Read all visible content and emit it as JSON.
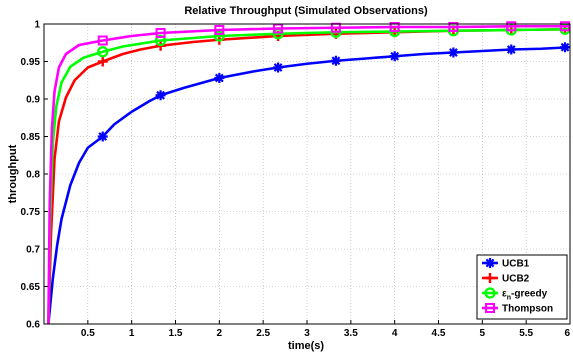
{
  "chart_data": {
    "type": "line",
    "title": "Relative Throughput (Simulated Observations)",
    "xlabel": "time(s)",
    "ylabel": "throughput",
    "xlim": [
      0,
      6
    ],
    "ylim": [
      0.6,
      1.0
    ],
    "xticks": [
      0.5,
      1,
      1.5,
      2,
      2.5,
      3,
      3.5,
      4,
      4.5,
      5,
      5.5,
      6
    ],
    "xtick_labels": [
      "0.5",
      "1",
      "1.5",
      "2",
      "2.5",
      "3",
      "3.5",
      "4",
      "4.5",
      "5",
      "5.5",
      "6"
    ],
    "yticks": [
      0.6,
      0.65,
      0.7,
      0.75,
      0.8,
      0.85,
      0.9,
      0.95,
      1.0
    ],
    "ytick_labels": [
      "0.6",
      "0.65",
      "0.7",
      "0.75",
      "0.8",
      "0.85",
      "0.9",
      "0.95",
      "1"
    ],
    "grid": true,
    "legend_position": "bottom-right",
    "series": [
      {
        "name": "UCB1",
        "color": "#0000ff",
        "marker": "asterisk",
        "x": [
          0.05,
          0.1,
          0.15,
          0.2,
          0.3,
          0.4,
          0.5,
          0.67,
          0.8,
          1.0,
          1.2,
          1.33,
          1.6,
          2.0,
          2.4,
          2.67,
          3.0,
          3.33,
          3.67,
          4.0,
          4.33,
          4.67,
          5.0,
          5.33,
          5.67,
          6.0
        ],
        "y": [
          0.6,
          0.66,
          0.705,
          0.74,
          0.785,
          0.815,
          0.835,
          0.85,
          0.866,
          0.883,
          0.897,
          0.905,
          0.915,
          0.928,
          0.937,
          0.942,
          0.947,
          0.951,
          0.954,
          0.957,
          0.96,
          0.962,
          0.964,
          0.966,
          0.967,
          0.969
        ],
        "marker_x": [
          0.67,
          1.33,
          2.0,
          2.67,
          3.33,
          4.0,
          4.67,
          5.33,
          6.0
        ],
        "marker_y": [
          0.85,
          0.905,
          0.928,
          0.942,
          0.951,
          0.957,
          0.962,
          0.966,
          0.969
        ]
      },
      {
        "name": "UCB2",
        "color": "#ff0000",
        "marker": "plus",
        "x": [
          0.05,
          0.08,
          0.12,
          0.17,
          0.25,
          0.35,
          0.5,
          0.67,
          0.9,
          1.1,
          1.33,
          1.7,
          2.0,
          2.67,
          3.33,
          4.0,
          4.67,
          5.33,
          6.0
        ],
        "y": [
          0.6,
          0.72,
          0.82,
          0.87,
          0.902,
          0.925,
          0.942,
          0.95,
          0.96,
          0.966,
          0.971,
          0.976,
          0.979,
          0.984,
          0.987,
          0.989,
          0.991,
          0.992,
          0.993
        ],
        "marker_x": [
          0.67,
          1.33,
          2.0,
          2.67,
          3.33,
          4.0,
          4.67,
          5.33,
          6.0
        ],
        "marker_y": [
          0.95,
          0.971,
          0.979,
          0.984,
          0.987,
          0.989,
          0.991,
          0.992,
          0.993
        ]
      },
      {
        "name": "εn-greedy",
        "name_parts": [
          "ε",
          "n",
          "-greedy"
        ],
        "color": "#00ff00",
        "marker": "circle",
        "x": [
          0.05,
          0.07,
          0.1,
          0.14,
          0.2,
          0.3,
          0.45,
          0.67,
          0.9,
          1.33,
          2.0,
          2.67,
          3.33,
          4.0,
          4.67,
          5.33,
          6.0
        ],
        "y": [
          0.6,
          0.74,
          0.84,
          0.89,
          0.922,
          0.943,
          0.955,
          0.963,
          0.97,
          0.978,
          0.984,
          0.987,
          0.989,
          0.99,
          0.991,
          0.992,
          0.993
        ],
        "marker_x": [
          0.67,
          1.33,
          2.0,
          2.67,
          3.33,
          4.0,
          4.67,
          5.33,
          6.0
        ],
        "marker_y": [
          0.963,
          0.978,
          0.984,
          0.987,
          0.989,
          0.99,
          0.991,
          0.992,
          0.993
        ]
      },
      {
        "name": "Thompson",
        "color": "#ff00ff",
        "marker": "square",
        "x": [
          0.05,
          0.065,
          0.09,
          0.12,
          0.17,
          0.25,
          0.4,
          0.67,
          1.0,
          1.33,
          2.0,
          2.67,
          3.33,
          4.0,
          4.67,
          5.33,
          6.0
        ],
        "y": [
          0.6,
          0.76,
          0.86,
          0.91,
          0.942,
          0.96,
          0.972,
          0.978,
          0.984,
          0.988,
          0.992,
          0.994,
          0.995,
          0.996,
          0.996,
          0.997,
          0.997
        ],
        "marker_x": [
          0.67,
          1.33,
          2.0,
          2.67,
          3.33,
          4.0,
          4.67,
          5.33,
          6.0
        ],
        "marker_y": [
          0.978,
          0.988,
          0.992,
          0.994,
          0.995,
          0.996,
          0.996,
          0.997,
          0.997
        ]
      }
    ]
  }
}
